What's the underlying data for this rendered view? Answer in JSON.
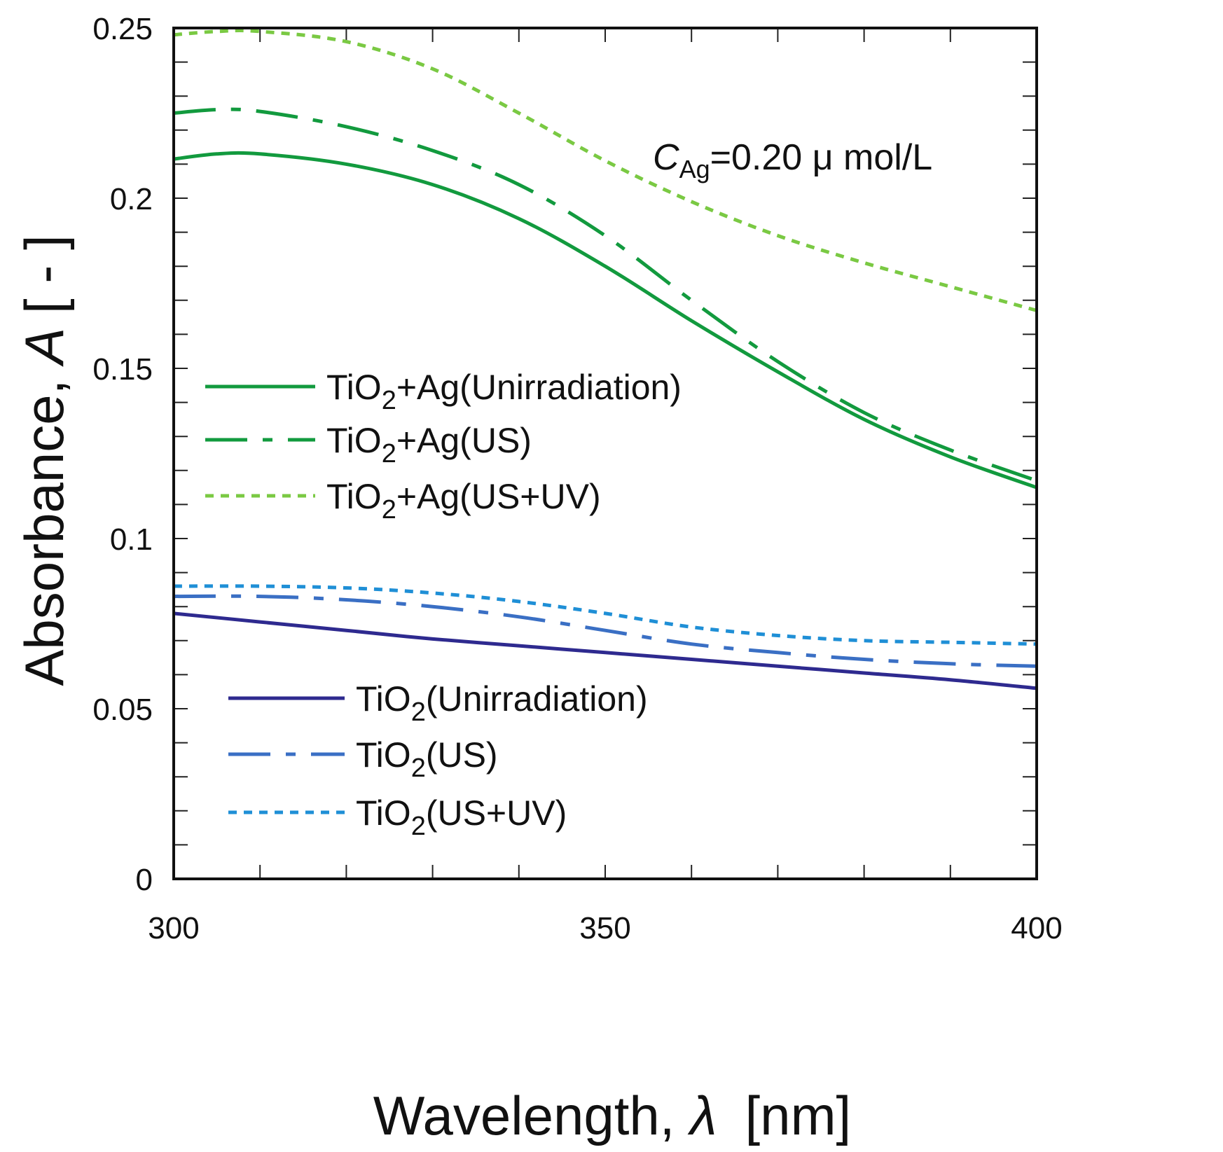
{
  "chart_data": {
    "type": "line",
    "xlabel": {
      "prefix": "Wavelength, ",
      "symbol": "λ",
      "suffix": "[nm]"
    },
    "ylabel": {
      "prefix": "Absorbance, ",
      "symbol": "A",
      "suffix": "[ - ]"
    },
    "xlim": [
      300,
      400
    ],
    "ylim": [
      0,
      0.25
    ],
    "x_ticks": [
      "300",
      "350",
      "400"
    ],
    "y_ticks": [
      "0",
      "0.05",
      "0.1",
      "0.15",
      "0.2",
      "0.25"
    ],
    "x_minor_step": 10,
    "y_minor_step": 0.01,
    "annotation": {
      "symbol": "C",
      "subscript": "Ag",
      "rest": "=0.20 μ mol/L"
    },
    "series": [
      {
        "name": "TiO2+Ag(Unirradiation)",
        "legend": {
          "base": "TiO",
          "sub": "2",
          "rest": "+Ag(Unirradiation)"
        },
        "color": "#129a3e",
        "dash": "solid",
        "group": "upper",
        "x": [
          300,
          305,
          310,
          320,
          330,
          340,
          350,
          360,
          370,
          380,
          390,
          400
        ],
        "y": [
          0.2115,
          0.213,
          0.213,
          0.21,
          0.204,
          0.194,
          0.18,
          0.164,
          0.149,
          0.135,
          0.124,
          0.115
        ]
      },
      {
        "name": "TiO2+Ag(US)",
        "legend": {
          "base": "TiO",
          "sub": "2",
          "rest": "+Ag(US)"
        },
        "color": "#129a3e",
        "dash": "dashdot",
        "group": "upper",
        "x": [
          300,
          305,
          310,
          320,
          330,
          340,
          350,
          360,
          370,
          380,
          390,
          400
        ],
        "y": [
          0.225,
          0.226,
          0.2255,
          0.221,
          0.214,
          0.204,
          0.189,
          0.17,
          0.152,
          0.137,
          0.126,
          0.117
        ]
      },
      {
        "name": "TiO2+Ag(US+UV)",
        "legend": {
          "base": "TiO",
          "sub": "2",
          "rest": "+Ag(US+UV)"
        },
        "color": "#7ac943",
        "dash": "dotted",
        "group": "upper",
        "x": [
          300,
          305,
          310,
          320,
          330,
          340,
          350,
          360,
          370,
          380,
          390,
          400
        ],
        "y": [
          0.248,
          0.249,
          0.249,
          0.246,
          0.238,
          0.225,
          0.211,
          0.199,
          0.189,
          0.181,
          0.174,
          0.167
        ]
      },
      {
        "name": "TiO2(Unirradiation)",
        "legend": {
          "base": "TiO",
          "sub": "2",
          "rest": "(Unirradiation)"
        },
        "color": "#2e2a8f",
        "dash": "solid",
        "group": "lower",
        "x": [
          300,
          310,
          320,
          330,
          340,
          350,
          360,
          370,
          380,
          390,
          400
        ],
        "y": [
          0.078,
          0.0755,
          0.073,
          0.0705,
          0.0685,
          0.0665,
          0.0645,
          0.0625,
          0.0605,
          0.0585,
          0.056
        ]
      },
      {
        "name": "TiO2(US)",
        "legend": {
          "base": "TiO",
          "sub": "2",
          "rest": "(US)"
        },
        "color": "#3a6fc4",
        "dash": "dashdot",
        "group": "lower",
        "x": [
          300,
          310,
          320,
          330,
          340,
          350,
          360,
          370,
          380,
          390,
          400
        ],
        "y": [
          0.083,
          0.083,
          0.082,
          0.08,
          0.077,
          0.073,
          0.069,
          0.0665,
          0.0645,
          0.0632,
          0.0625
        ]
      },
      {
        "name": "TiO2(US+UV)",
        "legend": {
          "base": "TiO",
          "sub": "2",
          "rest": "(US+UV)"
        },
        "color": "#1f8fd6",
        "dash": "dotted",
        "group": "lower",
        "x": [
          300,
          310,
          320,
          330,
          340,
          350,
          360,
          370,
          380,
          390,
          400
        ],
        "y": [
          0.086,
          0.086,
          0.0855,
          0.084,
          0.0815,
          0.078,
          0.074,
          0.0715,
          0.07,
          0.0695,
          0.069
        ]
      }
    ]
  }
}
